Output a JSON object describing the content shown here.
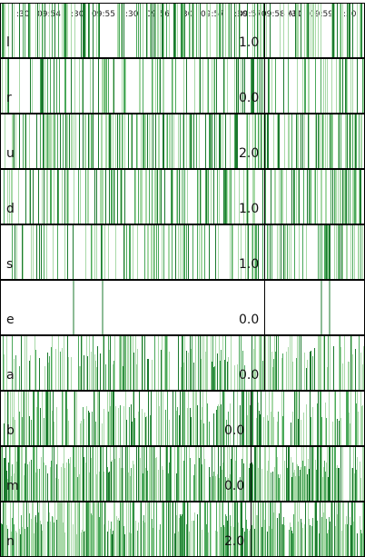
{
  "axis": {
    "left_ticks": [
      ":30",
      "09:54",
      ":30",
      "09:55",
      ":30",
      "09:56",
      ":30",
      "09:57",
      ":30"
    ],
    "overlap_text": "09:5709:58 AM",
    "right_ticks": [
      ":30",
      "09:59",
      ":30"
    ]
  },
  "colors": {
    "strip_dark": "#1b7a2e",
    "strip_mid": "#4aa85a",
    "strip_light": "#a8d9a8",
    "row_border": "#000000",
    "divider": "#000000"
  },
  "rows": [
    {
      "label": "l",
      "value": "1.0",
      "density": 0.35
    },
    {
      "label": "r",
      "value": "0.0",
      "density": 0.3
    },
    {
      "label": "u",
      "value": "2.0",
      "density": 0.45
    },
    {
      "label": "d",
      "value": "1.0",
      "density": 0.4
    },
    {
      "label": "s",
      "value": "1.0",
      "density": 0.3
    },
    {
      "label": "e",
      "value": "0.0",
      "density": 0.01
    },
    {
      "label": "a",
      "value": "0.0",
      "density": 0.5
    },
    {
      "label": "b",
      "value": "0.0",
      "density": 0.55
    },
    {
      "label": "m",
      "value": "0.0",
      "density": 0.7
    },
    {
      "label": "n",
      "value": "2.0",
      "density": 0.75
    }
  ]
}
